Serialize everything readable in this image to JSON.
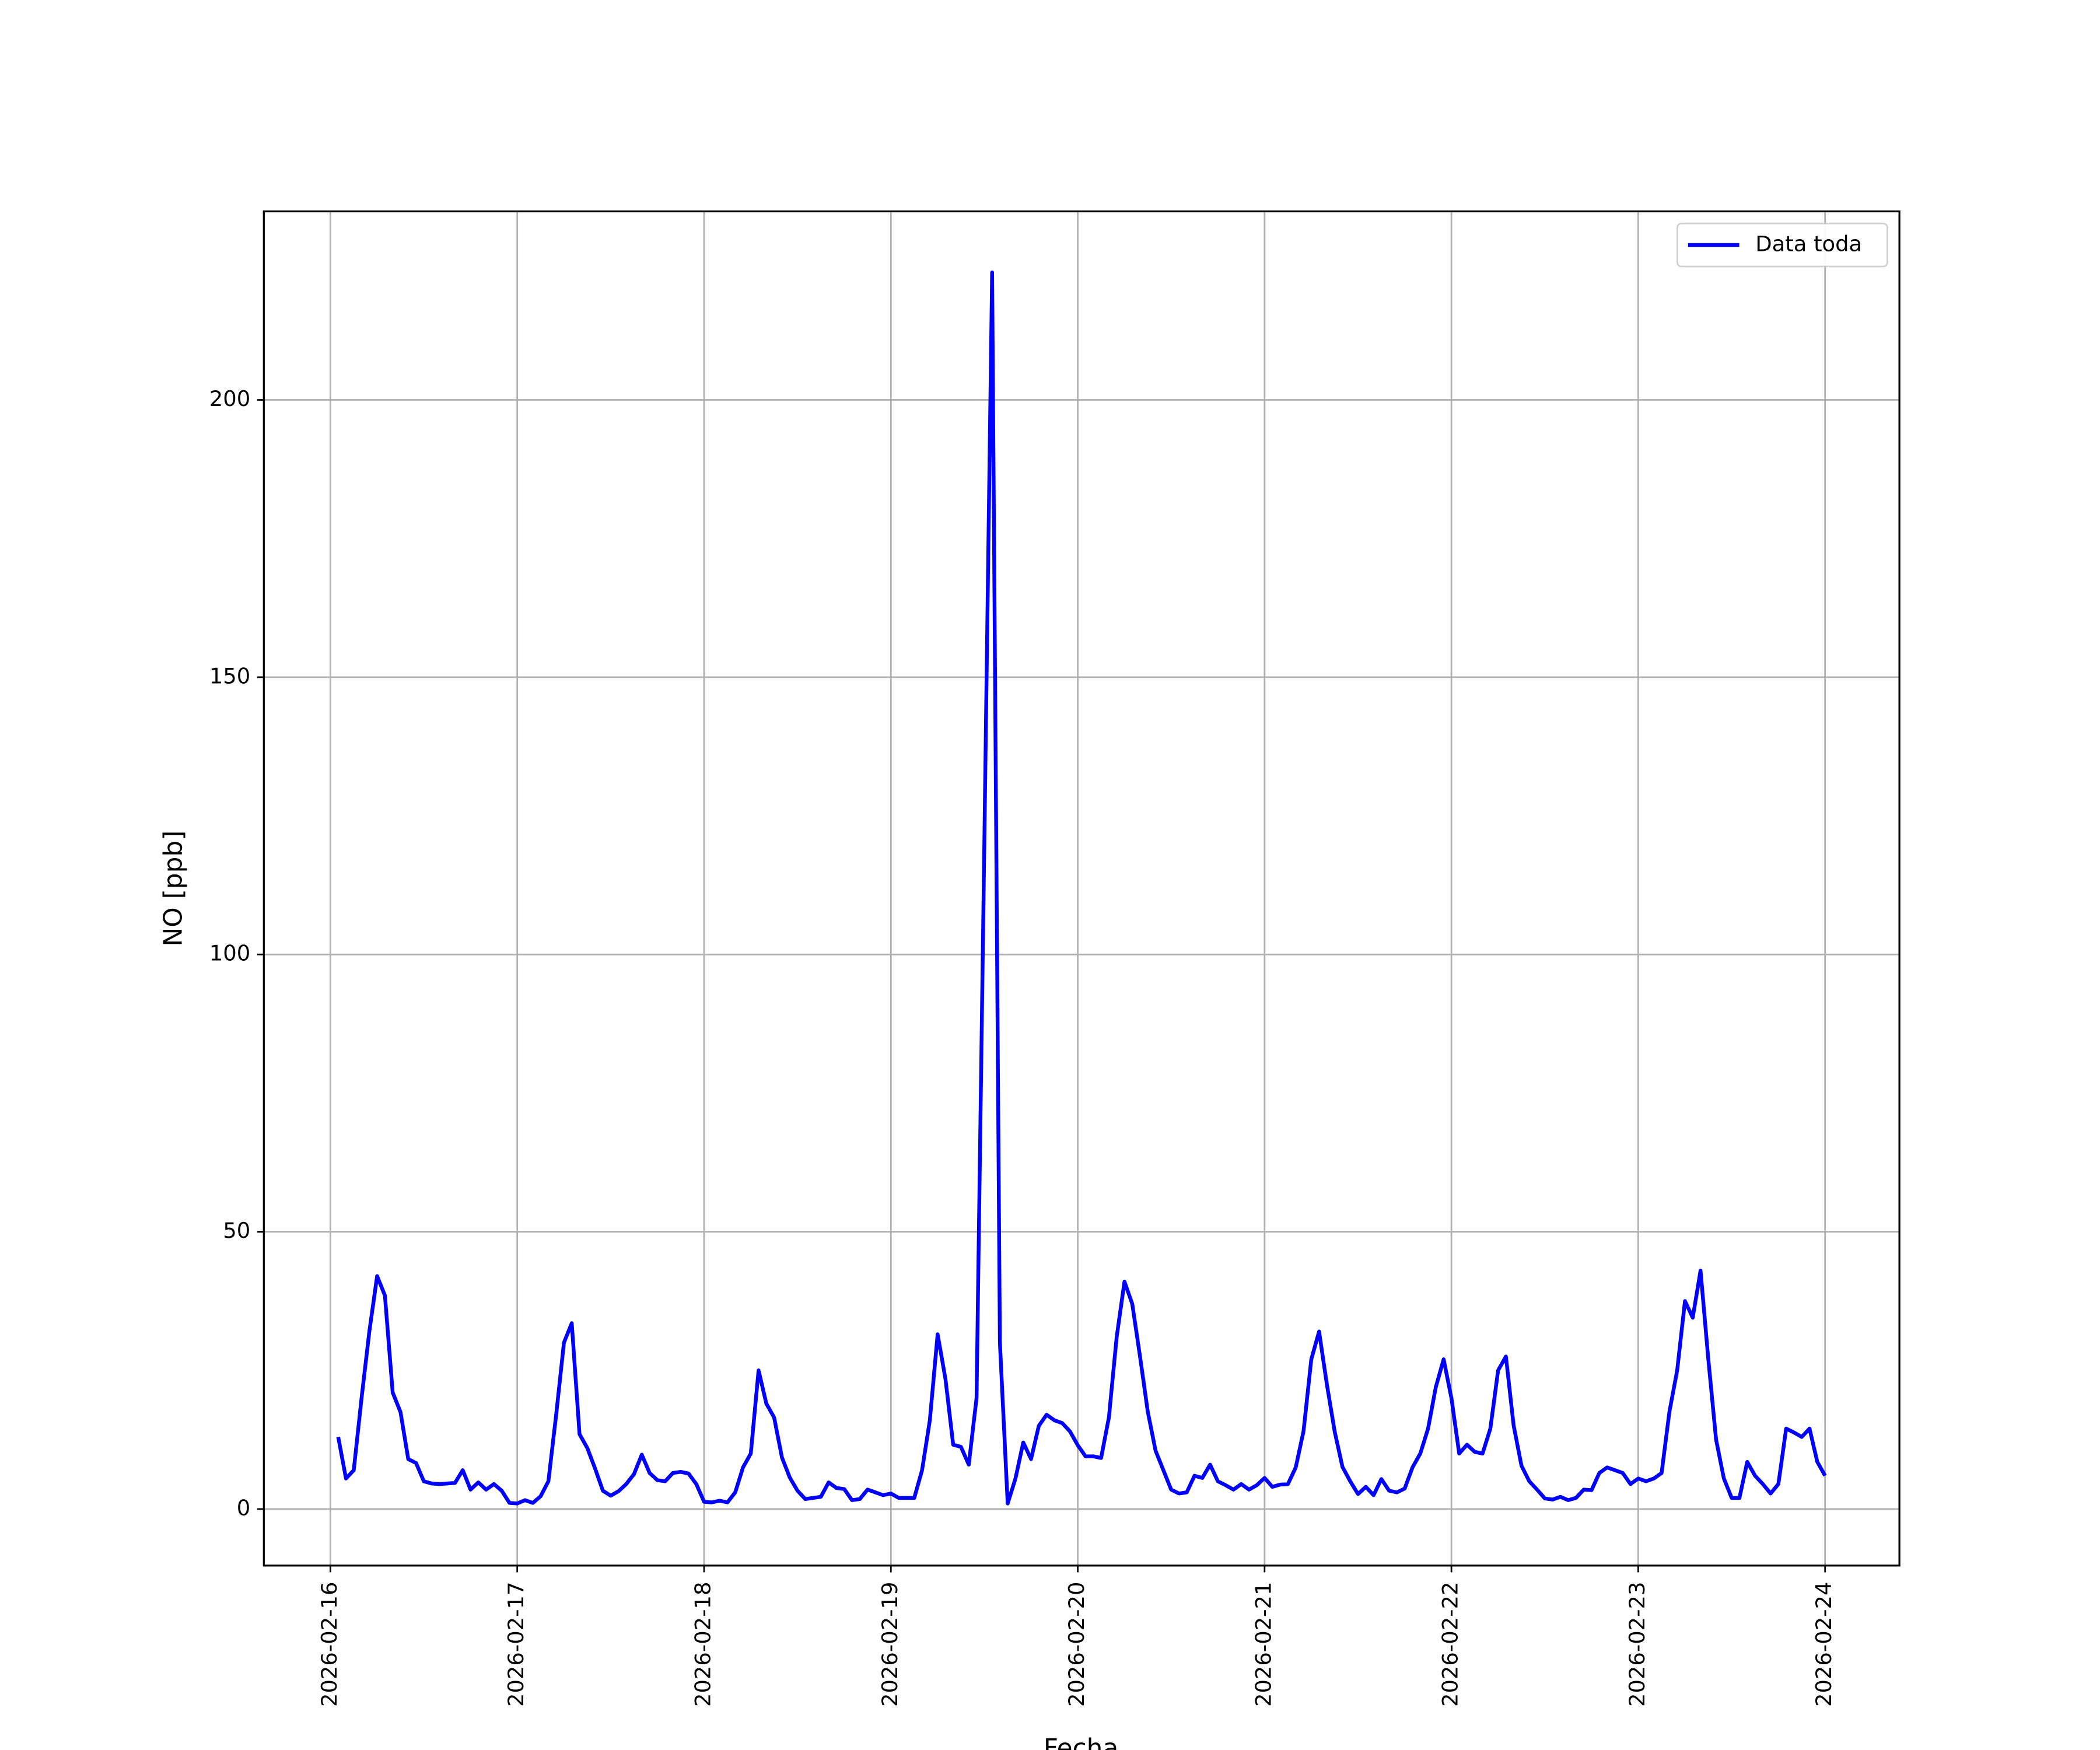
{
  "chart_data": {
    "type": "line",
    "xlabel": "Fecha",
    "ylabel": "NO [ppb]",
    "x": [
      "2026-02-16 01:00",
      "2026-02-16 02:00",
      "2026-02-16 03:00",
      "2026-02-16 04:00",
      "2026-02-16 05:00",
      "2026-02-16 06:00",
      "2026-02-16 07:00",
      "2026-02-16 08:00",
      "2026-02-16 09:00",
      "2026-02-16 10:00",
      "2026-02-16 11:00",
      "2026-02-16 12:00",
      "2026-02-16 13:00",
      "2026-02-16 14:00",
      "2026-02-16 15:00",
      "2026-02-16 16:00",
      "2026-02-16 17:00",
      "2026-02-16 18:00",
      "2026-02-16 19:00",
      "2026-02-16 20:00",
      "2026-02-16 21:00",
      "2026-02-16 22:00",
      "2026-02-16 23:00",
      "2026-02-17 00:00",
      "2026-02-17 01:00",
      "2026-02-17 02:00",
      "2026-02-17 03:00",
      "2026-02-17 04:00",
      "2026-02-17 05:00",
      "2026-02-17 06:00",
      "2026-02-17 07:00",
      "2026-02-17 08:00",
      "2026-02-17 09:00",
      "2026-02-17 10:00",
      "2026-02-17 11:00",
      "2026-02-17 12:00",
      "2026-02-17 13:00",
      "2026-02-17 14:00",
      "2026-02-17 15:00",
      "2026-02-17 16:00",
      "2026-02-17 17:00",
      "2026-02-17 18:00",
      "2026-02-17 19:00",
      "2026-02-17 20:00",
      "2026-02-17 21:00",
      "2026-02-17 22:00",
      "2026-02-17 23:00",
      "2026-02-18 00:00",
      "2026-02-18 01:00",
      "2026-02-18 02:00",
      "2026-02-18 03:00",
      "2026-02-18 04:00",
      "2026-02-18 05:00",
      "2026-02-18 06:00",
      "2026-02-18 07:00",
      "2026-02-18 08:00",
      "2026-02-18 09:00",
      "2026-02-18 10:00",
      "2026-02-18 11:00",
      "2026-02-18 12:00",
      "2026-02-18 13:00",
      "2026-02-18 14:00",
      "2026-02-18 15:00",
      "2026-02-18 16:00",
      "2026-02-18 17:00",
      "2026-02-18 18:00",
      "2026-02-18 19:00",
      "2026-02-18 20:00",
      "2026-02-18 21:00",
      "2026-02-18 22:00",
      "2026-02-18 23:00",
      "2026-02-19 00:00",
      "2026-02-19 01:00",
      "2026-02-19 02:00",
      "2026-02-19 03:00",
      "2026-02-19 04:00",
      "2026-02-19 05:00",
      "2026-02-19 06:00",
      "2026-02-19 07:00",
      "2026-02-19 08:00",
      "2026-02-19 09:00",
      "2026-02-19 10:00",
      "2026-02-19 11:00",
      "2026-02-19 12:00",
      "2026-02-19 13:00",
      "2026-02-19 14:00",
      "2026-02-19 15:00",
      "2026-02-19 16:00",
      "2026-02-19 17:00",
      "2026-02-19 18:00",
      "2026-02-19 19:00",
      "2026-02-19 20:00",
      "2026-02-19 21:00",
      "2026-02-19 22:00",
      "2026-02-19 23:00",
      "2026-02-20 00:00",
      "2026-02-20 01:00",
      "2026-02-20 02:00",
      "2026-02-20 03:00",
      "2026-02-20 04:00",
      "2026-02-20 05:00",
      "2026-02-20 06:00",
      "2026-02-20 07:00",
      "2026-02-20 08:00",
      "2026-02-20 09:00",
      "2026-02-20 10:00",
      "2026-02-20 11:00",
      "2026-02-20 12:00",
      "2026-02-20 13:00",
      "2026-02-20 14:00",
      "2026-02-20 15:00",
      "2026-02-20 16:00",
      "2026-02-20 17:00",
      "2026-02-20 18:00",
      "2026-02-20 19:00",
      "2026-02-20 20:00",
      "2026-02-20 21:00",
      "2026-02-20 22:00",
      "2026-02-20 23:00",
      "2026-02-21 00:00",
      "2026-02-21 01:00",
      "2026-02-21 02:00",
      "2026-02-21 03:00",
      "2026-02-21 04:00",
      "2026-02-21 05:00",
      "2026-02-21 06:00",
      "2026-02-21 07:00",
      "2026-02-21 08:00",
      "2026-02-21 09:00",
      "2026-02-21 10:00",
      "2026-02-21 11:00",
      "2026-02-21 12:00",
      "2026-02-21 13:00",
      "2026-02-21 14:00",
      "2026-02-21 15:00",
      "2026-02-21 16:00",
      "2026-02-21 17:00",
      "2026-02-21 18:00",
      "2026-02-21 19:00",
      "2026-02-21 20:00",
      "2026-02-21 21:00",
      "2026-02-21 22:00",
      "2026-02-21 23:00",
      "2026-02-22 00:00",
      "2026-02-22 01:00",
      "2026-02-22 02:00",
      "2026-02-22 03:00",
      "2026-02-22 04:00",
      "2026-02-22 05:00",
      "2026-02-22 06:00",
      "2026-02-22 07:00",
      "2026-02-22 08:00",
      "2026-02-22 09:00",
      "2026-02-22 10:00",
      "2026-02-22 11:00",
      "2026-02-22 12:00",
      "2026-02-22 13:00",
      "2026-02-22 14:00",
      "2026-02-22 15:00",
      "2026-02-22 16:00",
      "2026-02-22 17:00",
      "2026-02-22 18:00",
      "2026-02-22 19:00",
      "2026-02-22 20:00",
      "2026-02-22 21:00",
      "2026-02-22 22:00",
      "2026-02-22 23:00",
      "2026-02-23 00:00",
      "2026-02-23 01:00",
      "2026-02-23 02:00",
      "2026-02-23 03:00",
      "2026-02-23 04:00",
      "2026-02-23 05:00",
      "2026-02-23 06:00",
      "2026-02-23 07:00",
      "2026-02-23 08:00",
      "2026-02-23 09:00",
      "2026-02-23 10:00",
      "2026-02-23 11:00",
      "2026-02-23 12:00",
      "2026-02-23 13:00",
      "2026-02-23 14:00",
      "2026-02-23 15:00",
      "2026-02-23 16:00",
      "2026-02-23 17:00",
      "2026-02-23 18:00",
      "2026-02-23 19:00",
      "2026-02-23 20:00",
      "2026-02-23 21:00",
      "2026-02-23 22:00",
      "2026-02-23 23:00",
      "2026-02-24 00:00"
    ],
    "series": [
      {
        "name": "Data toda",
        "color": "#0000ff",
        "values": [
          13,
          5.5,
          7,
          20,
          32,
          42,
          38.5,
          21,
          17.5,
          9,
          8.3,
          5,
          4.6,
          4.5,
          4.6,
          4.7,
          7,
          3.5,
          4.8,
          3.5,
          4.5,
          3.3,
          1.1,
          1,
          1.6,
          1.1,
          2.3,
          5,
          17,
          30,
          33.5,
          13.5,
          11,
          7.3,
          3.3,
          2.4,
          3.2,
          4.5,
          6.3,
          9.8,
          6.5,
          5.2,
          5,
          6.5,
          6.7,
          6.4,
          4.5,
          1.3,
          1.2,
          1.5,
          1.2,
          3,
          7.5,
          10,
          25,
          19,
          16.5,
          9.3,
          5.7,
          3.3,
          1.8,
          2,
          2.2,
          4.8,
          3.8,
          3.6,
          1.6,
          1.8,
          3.5,
          3,
          2.5,
          2.8,
          2,
          2,
          2,
          7,
          16,
          31.5,
          23.5,
          11.6,
          11.2,
          8,
          20,
          120,
          223,
          30,
          1,
          5.5,
          12,
          9,
          15,
          17,
          16,
          15.5,
          14,
          11.5,
          9.5,
          9.5,
          9.2,
          16.5,
          31,
          41,
          37,
          27.5,
          17.5,
          10.5,
          7,
          3.5,
          2.8,
          3,
          6,
          5.6,
          8,
          5,
          4.3,
          3.5,
          4.5,
          3.5,
          4.3,
          5.6,
          4,
          4.4,
          4.5,
          7.5,
          14,
          27,
          32,
          22.5,
          14,
          7.6,
          5,
          2.7,
          4,
          2.5,
          5.4,
          3.3,
          3,
          3.7,
          7.5,
          10,
          14.5,
          22,
          27,
          20,
          10,
          11.6,
          10.3,
          10,
          14.5,
          25,
          27.5,
          15,
          7.8,
          5,
          3.5,
          1.9,
          1.7,
          2.2,
          1.6,
          2,
          3.5,
          3.4,
          6.5,
          7.5,
          7,
          6.5,
          4.5,
          5.5,
          5,
          5.5,
          6.5,
          17.5,
          25,
          37.5,
          34.5,
          43,
          27,
          12.5,
          5.5,
          2,
          2,
          8.5,
          6,
          4.5,
          2.8,
          4.5,
          14.5,
          13.8,
          13,
          14.5,
          8.5,
          6
        ]
      }
    ],
    "xlim": [
      "2026-02-15 15:27",
      "2026-02-24 09:33"
    ],
    "xticks": [
      "2026-02-16",
      "2026-02-17",
      "2026-02-18",
      "2026-02-19",
      "2026-02-20",
      "2026-02-21",
      "2026-02-22",
      "2026-02-23",
      "2026-02-24"
    ],
    "ylim": [
      -10.2,
      234
    ],
    "yticks": [
      0,
      50,
      100,
      150,
      200
    ],
    "grid": true,
    "legend": "upper right"
  }
}
